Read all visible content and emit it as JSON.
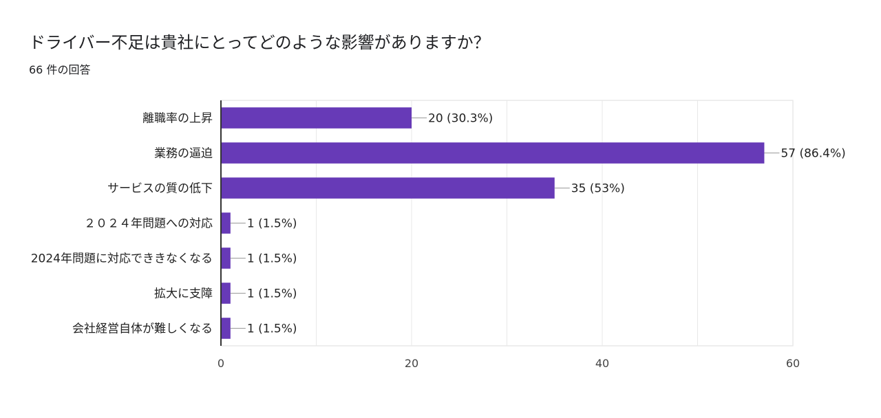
{
  "header": {
    "question": "ドライバー不足は貴社にとってどのような影響がありますか？",
    "response_count": "66 件の回答"
  },
  "chart_data": {
    "type": "bar",
    "orientation": "horizontal",
    "categories": [
      "離職率の上昇",
      "業務の逼迫",
      "サービスの質の低下",
      "２０２４年問題への対応",
      "2024年問題に対応でききなくなる",
      "拡大に支障",
      "会社経営自体が難しくなる"
    ],
    "values": [
      20,
      57,
      35,
      1,
      1,
      1,
      1
    ],
    "data_labels": [
      "20 (30.3%)",
      "57 (86.4%)",
      "35 (53%)",
      "1 (1.5%)",
      "1 (1.5%)",
      "1 (1.5%)",
      "1 (1.5%)"
    ],
    "xlim": [
      0,
      60
    ],
    "x_ticks": [
      0,
      20,
      40,
      60
    ],
    "x_tick_labels": [
      "0",
      "20",
      "40",
      "60"
    ],
    "grid": true,
    "bar_color": "#673ab7",
    "grid_color": "#e8e8e8",
    "axis_color": "#333333"
  }
}
